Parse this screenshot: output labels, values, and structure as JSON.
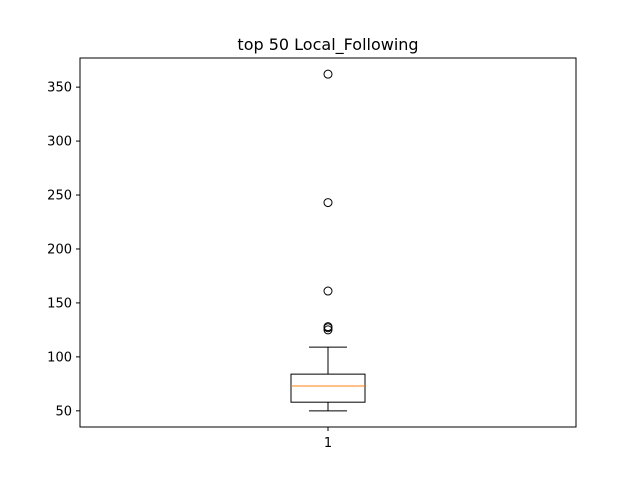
{
  "chart_data": {
    "type": "boxplot",
    "title": "top 50 Local_Following",
    "xlabel": "",
    "ylabel": "",
    "categories": [
      "1"
    ],
    "ylim": [
      35,
      377
    ],
    "yticks": [
      50,
      100,
      150,
      200,
      250,
      300,
      350
    ],
    "grid": false,
    "series": [
      {
        "category": "1",
        "whisker_low": 50,
        "q1": 58,
        "median": 73,
        "q3": 84,
        "whisker_high": 109,
        "fliers": [
          125,
          127,
          128,
          161,
          243,
          362
        ]
      }
    ],
    "colors": {
      "box": "#000000",
      "median": "#ff7f0e",
      "flier": "#000000"
    }
  }
}
